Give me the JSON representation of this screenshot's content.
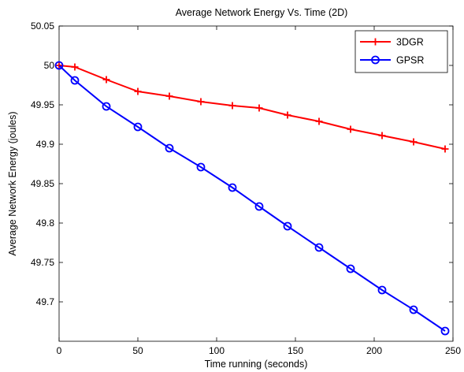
{
  "chart_data": {
    "type": "line",
    "title": "Average Network Energy Vs. Time (2D)",
    "xlabel": "Time running (seconds)",
    "ylabel": "Average Network Energy (joules)",
    "xlim": [
      0,
      250
    ],
    "ylim": [
      49.65,
      50.05
    ],
    "xticks": [
      "0",
      "50",
      "100",
      "150",
      "200",
      "250"
    ],
    "yticks": [
      "49.7",
      "49.75",
      "49.8",
      "49.85",
      "49.9",
      "49.95",
      "50",
      "50.05"
    ],
    "grid": false,
    "legend_position": "top-right",
    "series": [
      {
        "name": "3DGR",
        "color": "#ff0000",
        "marker": "plus",
        "x": [
          0,
          10,
          30,
          50,
          70,
          90,
          110,
          127,
          145,
          165,
          185,
          205,
          225,
          245
        ],
        "y": [
          50.0,
          49.998,
          49.982,
          49.967,
          49.961,
          49.954,
          49.949,
          49.946,
          49.937,
          49.929,
          49.919,
          49.911,
          49.903,
          49.894
        ]
      },
      {
        "name": "GPSR",
        "color": "#0000ff",
        "marker": "circle",
        "x": [
          0,
          10,
          30,
          50,
          70,
          90,
          110,
          127,
          145,
          165,
          185,
          205,
          225,
          245
        ],
        "y": [
          50.0,
          49.981,
          49.948,
          49.922,
          49.895,
          49.871,
          49.845,
          49.821,
          49.796,
          49.769,
          49.742,
          49.715,
          49.69,
          49.663
        ]
      }
    ]
  }
}
